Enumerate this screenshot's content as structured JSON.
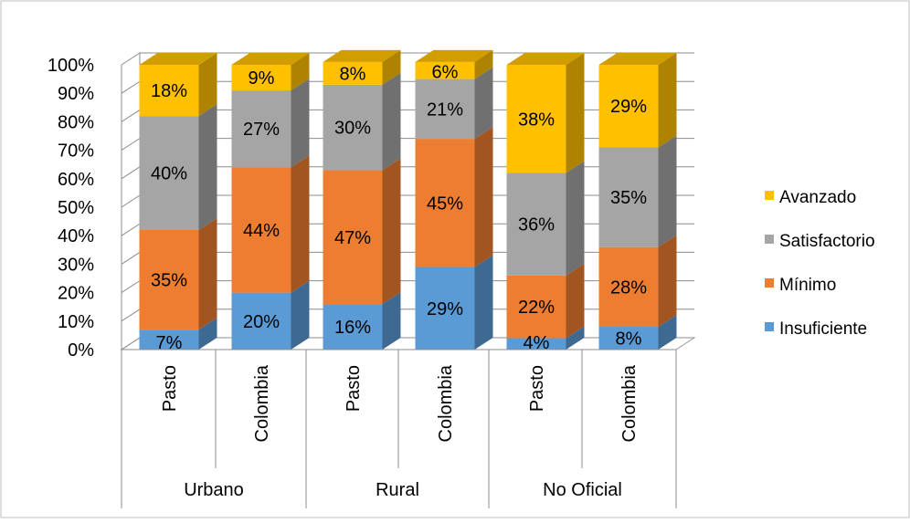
{
  "chart_data": {
    "type": "bar",
    "stacked": true,
    "percent_stacked": true,
    "three_d": true,
    "group_labels": [
      "Urbano",
      "Rural",
      "No Oficial"
    ],
    "categories": [
      "Pasto",
      "Colombia",
      "Pasto",
      "Colombia",
      "Pasto",
      "Colombia"
    ],
    "category_groups": [
      "Urbano",
      "Urbano",
      "Rural",
      "Rural",
      "No Oficial",
      "No Oficial"
    ],
    "series": [
      {
        "name": "Insuficiente",
        "color": "#5B9BD5",
        "values": [
          7,
          20,
          16,
          29,
          4,
          8
        ],
        "labels": [
          "7%",
          "20%",
          "16%",
          "29%",
          "4%",
          "8%"
        ]
      },
      {
        "name": "Mínimo",
        "color": "#ED7D31",
        "values": [
          35,
          44,
          47,
          45,
          22,
          28
        ],
        "labels": [
          "35%",
          "44%",
          "47%",
          "45%",
          "22%",
          "28%"
        ]
      },
      {
        "name": "Satisfactorio",
        "color": "#A5A5A5",
        "values": [
          40,
          27,
          30,
          21,
          36,
          35
        ],
        "labels": [
          "40%",
          "27%",
          "30%",
          "21%",
          "36%",
          "35%"
        ]
      },
      {
        "name": "Avanzado",
        "color": "#FFC000",
        "values": [
          18,
          9,
          8,
          6,
          38,
          29
        ],
        "labels": [
          "18%",
          "9%",
          "8%",
          "6%",
          "38%",
          "29%"
        ]
      }
    ],
    "y_ticks": [
      "0%",
      "10%",
      "20%",
      "30%",
      "40%",
      "50%",
      "60%",
      "70%",
      "80%",
      "90%",
      "100%"
    ],
    "ylim": [
      0,
      100
    ],
    "grid": true,
    "legend_position": "right"
  }
}
